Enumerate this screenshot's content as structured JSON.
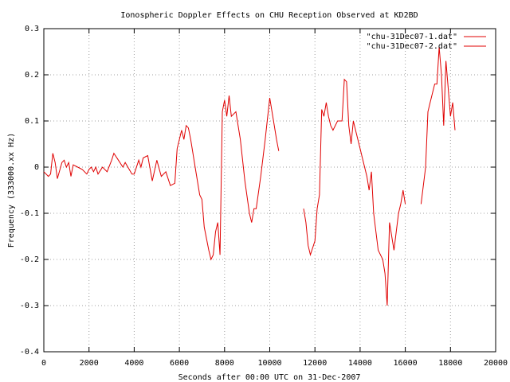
{
  "chart_data": {
    "type": "line",
    "title": "Ionospheric Doppler Effects on CHU Reception Observed at KD2BD",
    "x_label": "Seconds after 00:00 UTC on 31-Dec-2007",
    "y_label": "Frequency (333000.xx Hz)",
    "xlim": [
      0,
      20000
    ],
    "xticks": [
      0,
      2000,
      4000,
      6000,
      8000,
      10000,
      12000,
      14000,
      16000,
      18000,
      20000
    ],
    "ylim": [
      -0.4,
      0.3
    ],
    "yticks": [
      -0.4,
      -0.3,
      -0.2,
      -0.1,
      0,
      0.1,
      0.2,
      0.3
    ],
    "grid": true,
    "legend": "top-right",
    "series": [
      {
        "name": "\"chu-31Dec07-1.dat\"",
        "color": "#e00000",
        "x": [
          0,
          200,
          300,
          400,
          500,
          600,
          800,
          900,
          1000,
          1100,
          1200,
          1300,
          1500,
          1700,
          1900,
          2000,
          2100,
          2200,
          2300,
          2400,
          2600,
          2800,
          3000,
          3100,
          3300,
          3500,
          3600,
          3900,
          4000,
          4200,
          4300,
          4400,
          4600,
          4800,
          5000,
          5200,
          5400,
          5600,
          5800,
          5900,
          6100,
          6200,
          6300,
          6400,
          6500,
          6700,
          6900,
          7000,
          7100,
          7300,
          7400,
          7500,
          7600,
          7700,
          7800,
          7900,
          8000,
          8100,
          8200,
          8300,
          8500,
          8700,
          8900,
          9100,
          9200,
          9300,
          9400,
          9600,
          9800,
          10000,
          10200,
          10300,
          10400
        ],
        "values": [
          -0.01,
          -0.02,
          -0.015,
          0.03,
          0.01,
          -0.025,
          0.01,
          0.015,
          0.0,
          0.01,
          -0.02,
          0.005,
          0.0,
          -0.005,
          -0.015,
          -0.005,
          0.0,
          -0.01,
          0.0,
          -0.015,
          0.0,
          -0.01,
          0.015,
          0.03,
          0.015,
          0.0,
          0.01,
          -0.015,
          -0.015,
          0.015,
          0.0,
          0.02,
          0.025,
          -0.03,
          0.015,
          -0.02,
          -0.01,
          -0.04,
          -0.035,
          0.04,
          0.08,
          0.06,
          0.09,
          0.085,
          0.06,
          0.0,
          -0.06,
          -0.07,
          -0.13,
          -0.18,
          -0.2,
          -0.19,
          -0.14,
          -0.12,
          -0.19,
          0.12,
          0.145,
          0.11,
          0.155,
          0.11,
          0.12,
          0.06,
          -0.03,
          -0.1,
          -0.12,
          -0.09,
          -0.09,
          -0.02,
          0.06,
          0.15,
          0.09,
          0.06,
          0.035
        ]
      },
      {
        "name": "\"chu-31Dec07-2.dat\"",
        "color": "#e00000",
        "x": [
          11500,
          11600,
          11700,
          11800,
          12000,
          12100,
          12200,
          12300,
          12400,
          12500,
          12600,
          12700,
          12800,
          13000,
          13200,
          13300,
          13400,
          13500,
          13600,
          13700,
          13800,
          14000,
          14100,
          14300,
          14400,
          14500,
          14600,
          14800,
          15000,
          15100,
          15200,
          15300,
          15400,
          15500,
          15700,
          15800,
          15900,
          16000,
          null,
          16700,
          16900,
          17000,
          17100,
          17300,
          17400,
          17500,
          17600,
          17700,
          17800,
          17900,
          18000,
          18100,
          18200
        ],
        "values": [
          -0.09,
          -0.12,
          -0.17,
          -0.19,
          -0.16,
          -0.09,
          -0.06,
          0.125,
          0.11,
          0.14,
          0.11,
          0.09,
          0.08,
          0.1,
          0.1,
          0.19,
          0.185,
          0.09,
          0.05,
          0.1,
          0.08,
          0.04,
          0.02,
          -0.02,
          -0.05,
          -0.01,
          -0.1,
          -0.18,
          -0.2,
          -0.23,
          -0.3,
          -0.12,
          -0.15,
          -0.18,
          -0.1,
          -0.08,
          -0.05,
          -0.08,
          null,
          -0.08,
          0.0,
          0.12,
          0.14,
          0.18,
          0.18,
          0.26,
          0.2,
          0.09,
          0.23,
          0.17,
          0.11,
          0.14,
          0.08
        ]
      }
    ]
  }
}
